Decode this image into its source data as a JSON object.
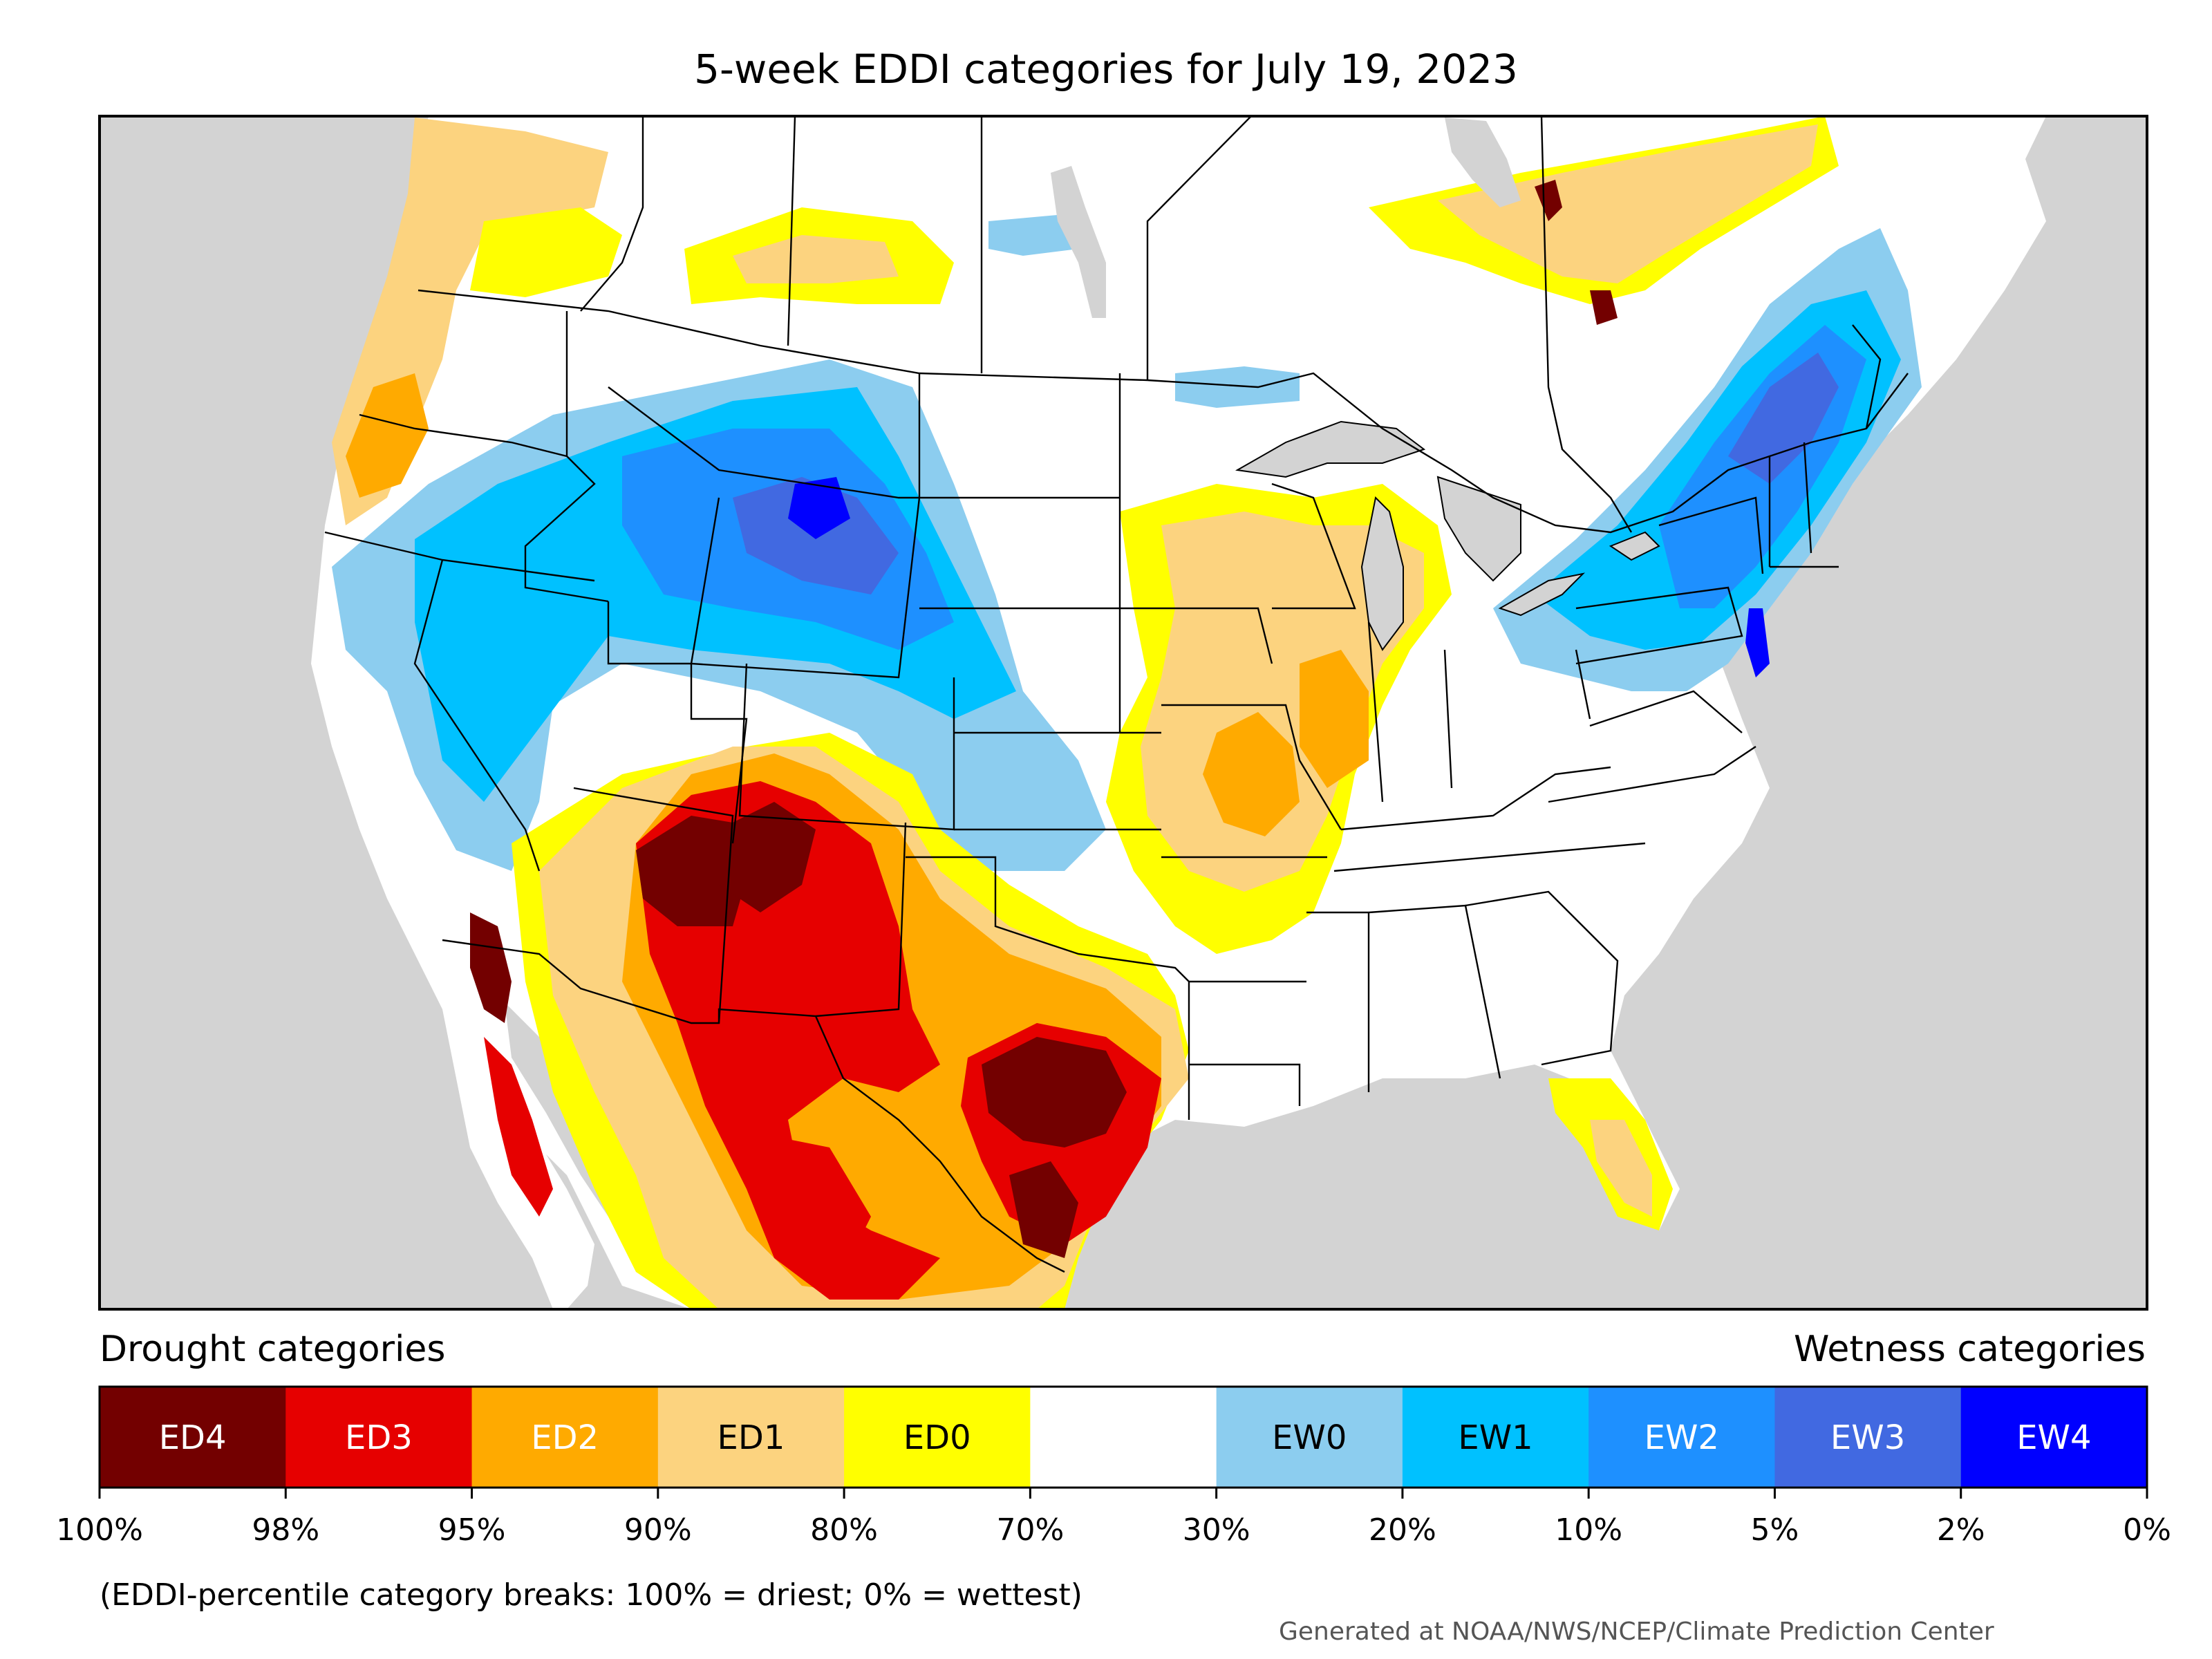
{
  "title": "5-week EDDI categories for July 19, 2023",
  "legend": {
    "drought_heading": "Drought categories",
    "wetness_heading": "Wetness categories",
    "categories": [
      {
        "label": "ED4",
        "color": "#730000",
        "text_color": "#ffffff"
      },
      {
        "label": "ED3",
        "color": "#e60000",
        "text_color": "#ffffff"
      },
      {
        "label": "ED2",
        "color": "#ffaa00",
        "text_color": "#ffffff"
      },
      {
        "label": "ED1",
        "color": "#fcd37f",
        "text_color": "#000000"
      },
      {
        "label": "ED0",
        "color": "#ffff00",
        "text_color": "#000000"
      },
      {
        "label": "",
        "color": "#ffffff",
        "text_color": "#000000"
      },
      {
        "label": "EW0",
        "color": "#8ccdef",
        "text_color": "#000000"
      },
      {
        "label": "EW1",
        "color": "#00c1ff",
        "text_color": "#000000"
      },
      {
        "label": "EW2",
        "color": "#1e90ff",
        "text_color": "#ffffff"
      },
      {
        "label": "EW3",
        "color": "#4169e1",
        "text_color": "#ffffff"
      },
      {
        "label": "EW4",
        "color": "#0000ff",
        "text_color": "#ffffff"
      }
    ],
    "breaks": [
      "100%",
      "98%",
      "95%",
      "90%",
      "80%",
      "70%",
      "30%",
      "20%",
      "10%",
      "5%",
      "2%",
      "0%"
    ]
  },
  "footnote": "(EDDI-percentile category breaks: 100% = driest; 0% = wettest)",
  "credit": "Generated at NOAA/NWS/NCEP/Climate Prediction Center",
  "colors": {
    "ocean": "#d3d3d3",
    "land": "#ffffff",
    "border": "#000000"
  }
}
